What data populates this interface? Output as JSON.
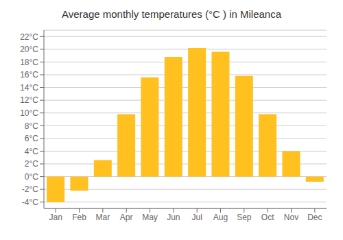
{
  "chart_data": {
    "type": "bar",
    "title": "Average monthly temperatures (°C ) in Mileanca",
    "categories": [
      "Jan",
      "Feb",
      "Mar",
      "Apr",
      "May",
      "Jun",
      "Jul",
      "Aug",
      "Sep",
      "Oct",
      "Nov",
      "Dec"
    ],
    "values": [
      -4.0,
      -2.2,
      2.6,
      9.8,
      15.6,
      18.8,
      20.2,
      19.6,
      15.8,
      9.8,
      4.0,
      -0.8
    ],
    "color": "#FFC020",
    "ylim": [
      -5,
      23
    ],
    "yticks": [
      {
        "value": -4,
        "label": "-4°C"
      },
      {
        "value": -2,
        "label": "-2°C"
      },
      {
        "value": 0,
        "label": "0°C"
      },
      {
        "value": 2,
        "label": "2°C"
      },
      {
        "value": 4,
        "label": "4°C"
      },
      {
        "value": 6,
        "label": "6°C"
      },
      {
        "value": 8,
        "label": "8°C"
      },
      {
        "value": 10,
        "label": "10°C"
      },
      {
        "value": 12,
        "label": "12°C"
      },
      {
        "value": 14,
        "label": "14°C"
      },
      {
        "value": 16,
        "label": "16°C"
      },
      {
        "value": 18,
        "label": "18°C"
      },
      {
        "value": 20,
        "label": "20°C"
      },
      {
        "value": 22,
        "label": "22°C"
      }
    ],
    "grid": true
  }
}
